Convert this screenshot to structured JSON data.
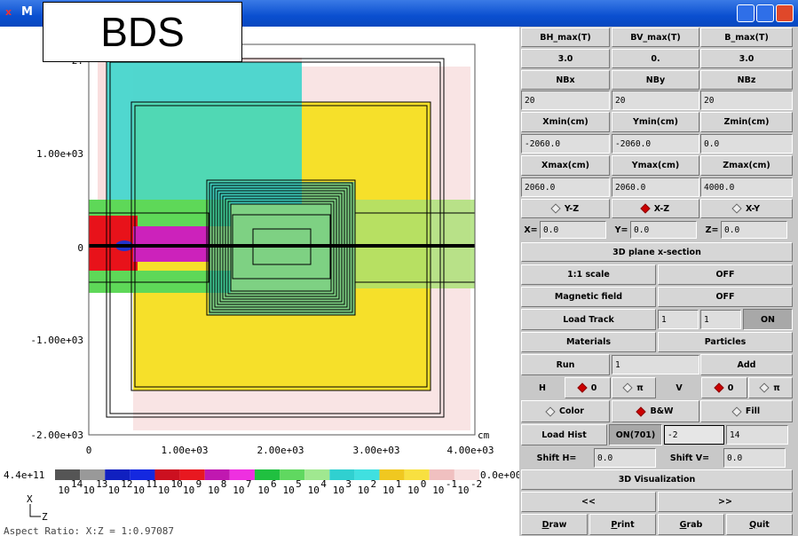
{
  "window": {
    "title": "M"
  },
  "overlay_label": "BDS",
  "plot": {
    "y_axis_labels": [
      "2.",
      "1.00e+03",
      "0",
      "-1.00e+03",
      "-2.00e+03"
    ],
    "x_axis_labels": [
      "0",
      "1.00e+03",
      "2.00e+03",
      "3.00e+03",
      "4.00e+03"
    ],
    "x_unit": "cm",
    "colorbar": {
      "max_label": "4.4e+11",
      "min_label": "0.0e+00",
      "exponents": [
        "14",
        "13",
        "12",
        "11",
        "10",
        "9",
        "8",
        "7",
        "6",
        "5",
        "4",
        "3",
        "2",
        "1",
        "0",
        "-1",
        "-2"
      ],
      "base": "10"
    },
    "axis_icon": {
      "up": "X",
      "right": "Z"
    },
    "aspect_ratio": "Aspect Ratio: X:Z = 1:0.97087"
  },
  "panel": {
    "field_headers": [
      "BH_max(T)",
      "BV_max(T)",
      "B_max(T)"
    ],
    "field_values": [
      "3.0",
      "0.",
      "3.0"
    ],
    "grid_headers": [
      "NBx",
      "NBy",
      "NBz"
    ],
    "grid_values": [
      "20",
      "20",
      "20"
    ],
    "min_headers": [
      "Xmin(cm)",
      "Ymin(cm)",
      "Zmin(cm)"
    ],
    "min_values": [
      "-2060.0",
      "-2060.0",
      "0.0"
    ],
    "max_headers": [
      "Xmax(cm)",
      "Ymax(cm)",
      "Zmax(cm)"
    ],
    "max_values": [
      "2060.0",
      "2060.0",
      "4000.0"
    ],
    "planes": [
      "Y-Z",
      "X-Z",
      "X-Y"
    ],
    "plane_coords": [
      {
        "label": "X=",
        "value": "0.0"
      },
      {
        "label": "Y=",
        "value": "0.0"
      },
      {
        "label": "Z=",
        "value": "0.0"
      }
    ],
    "section_button": "3D plane x-section",
    "scale": {
      "label": "1:1 scale",
      "state": "OFF"
    },
    "magnetic": {
      "label": "Magnetic field",
      "state": "OFF"
    },
    "load_track": {
      "label": "Load Track",
      "from": "1",
      "to": "1",
      "state": "ON"
    },
    "materials": "Materials",
    "particles": "Particles",
    "run": {
      "label": "Run",
      "value": "1",
      "add": "Add"
    },
    "rotation": {
      "h_label": "H",
      "h_options": [
        "0",
        "π"
      ],
      "v_label": "V",
      "v_options": [
        "0",
        "π"
      ]
    },
    "color_modes": [
      "Color",
      "B&W",
      "Fill"
    ],
    "hist": {
      "label": "Load Hist",
      "state": "ON(701)",
      "min": "-2",
      "max": "14"
    },
    "shift": {
      "h_label": "Shift H=",
      "h_value": "0.0",
      "v_label": "Shift V=",
      "v_value": "0.0"
    },
    "visualization": "3D Visualization",
    "nav": [
      "<<",
      ">>"
    ],
    "actions": [
      "Draw",
      "Print",
      "Grab",
      "Quit"
    ]
  }
}
